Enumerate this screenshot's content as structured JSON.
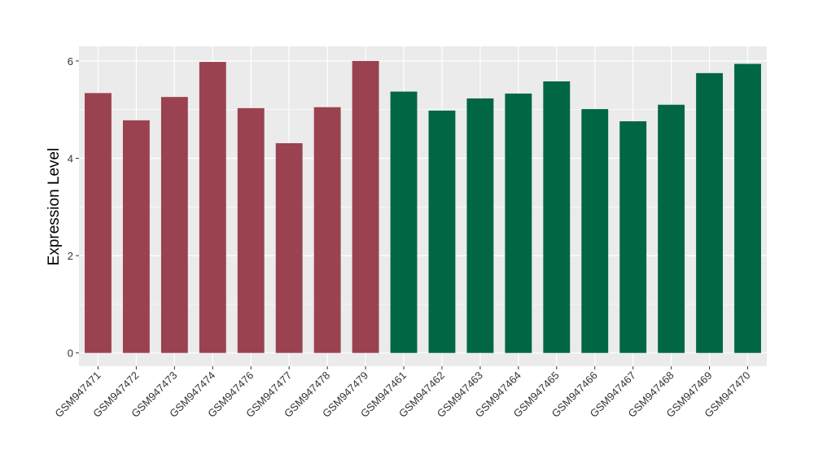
{
  "chart_data": {
    "type": "bar",
    "title": "",
    "xlabel": "",
    "ylabel": "Expression Level",
    "ylim": [
      -0.28,
      6.3
    ],
    "yticks": [
      0,
      2,
      4,
      6
    ],
    "grid": true,
    "categories": [
      "GSM947471",
      "GSM947472",
      "GSM947473",
      "GSM947474",
      "GSM947476",
      "GSM947477",
      "GSM947478",
      "GSM947479",
      "GSM947461",
      "GSM947462",
      "GSM947463",
      "GSM947464",
      "GSM947465",
      "GSM947466",
      "GSM947467",
      "GSM947468",
      "GSM947469",
      "GSM947470"
    ],
    "values": [
      5.34,
      4.78,
      5.26,
      5.98,
      5.03,
      4.31,
      5.05,
      6.0,
      5.37,
      4.98,
      5.23,
      5.33,
      5.58,
      5.01,
      4.76,
      5.1,
      5.75,
      5.94
    ],
    "groups": [
      0,
      0,
      0,
      0,
      0,
      0,
      0,
      0,
      1,
      1,
      1,
      1,
      1,
      1,
      1,
      1,
      1,
      1
    ],
    "colors": [
      "#9A4250",
      "#006644"
    ]
  }
}
